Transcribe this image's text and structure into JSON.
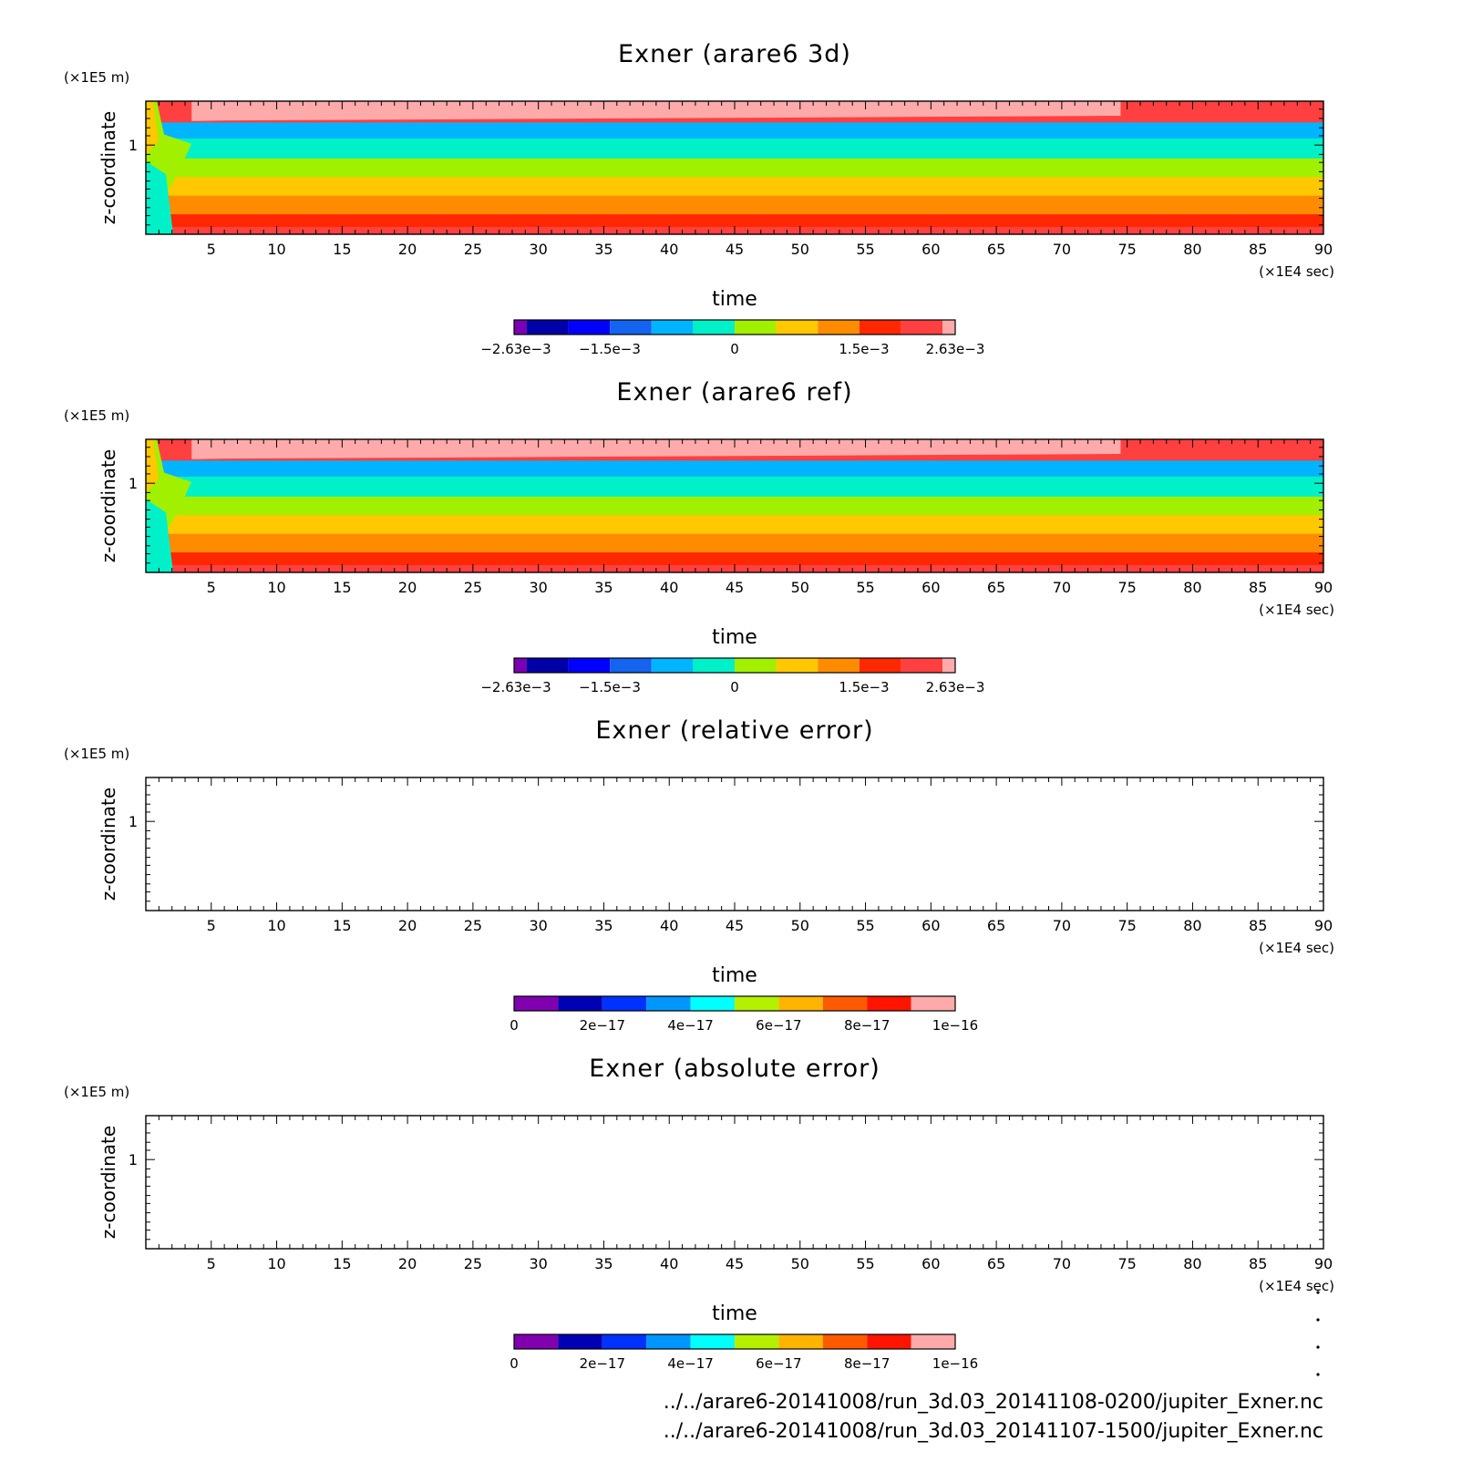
{
  "chart_data": [
    {
      "type": "heatmap",
      "title": "Exner (arare6 3d)",
      "xlabel": "time",
      "ylabel": "z-coordinate",
      "x_unit": "(×1E4 sec)",
      "y_unit": "(×1E5 m)",
      "xlim": [
        0,
        90
      ],
      "x_ticks": [
        "5",
        "10",
        "15",
        "20",
        "25",
        "30",
        "35",
        "40",
        "45",
        "50",
        "55",
        "60",
        "65",
        "70",
        "75",
        "80",
        "85",
        "90"
      ],
      "y_ticks": [
        "1"
      ],
      "colorbar": {
        "colors": [
          "#7a00b4",
          "#0000a8",
          "#0000ff",
          "#1464f0",
          "#00b4ff",
          "#00f0c8",
          "#a0f000",
          "#ffc800",
          "#ff8c00",
          "#ff2800",
          "#ff4040",
          "#ffaaaa"
        ],
        "labels": [
          "−2.63e−3",
          "−1.5e−3",
          "0",
          "1.5e−3",
          "2.63e−3"
        ]
      },
      "bands": [
        {
          "value": -0.001,
          "color": "#00b4ff"
        },
        {
          "value": -0.0005,
          "color": "#00f0c8"
        },
        {
          "value": 0.0003,
          "color": "#a0f000"
        },
        {
          "value": 0.0008,
          "color": "#ffc800"
        },
        {
          "value": 0.0013,
          "color": "#ff8c00"
        },
        {
          "value": 0.0018,
          "color": "#ff2800"
        },
        {
          "value": 0.0023,
          "color": "#ff4040"
        },
        {
          "value": 0.0026,
          "color": "#ffaaaa"
        }
      ]
    },
    {
      "type": "heatmap",
      "title": "Exner (arare6 ref)",
      "xlabel": "time",
      "ylabel": "z-coordinate",
      "x_unit": "(×1E4 sec)",
      "y_unit": "(×1E5 m)",
      "xlim": [
        0,
        90
      ],
      "x_ticks": [
        "5",
        "10",
        "15",
        "20",
        "25",
        "30",
        "35",
        "40",
        "45",
        "50",
        "55",
        "60",
        "65",
        "70",
        "75",
        "80",
        "85",
        "90"
      ],
      "y_ticks": [
        "1"
      ],
      "colorbar": {
        "colors": [
          "#7a00b4",
          "#0000a8",
          "#0000ff",
          "#1464f0",
          "#00b4ff",
          "#00f0c8",
          "#a0f000",
          "#ffc800",
          "#ff8c00",
          "#ff2800",
          "#ff4040",
          "#ffaaaa"
        ],
        "labels": [
          "−2.63e−3",
          "−1.5e−3",
          "0",
          "1.5e−3",
          "2.63e−3"
        ]
      },
      "bands": [
        {
          "value": -0.001,
          "color": "#00b4ff"
        },
        {
          "value": -0.0005,
          "color": "#00f0c8"
        },
        {
          "value": 0.0003,
          "color": "#a0f000"
        },
        {
          "value": 0.0008,
          "color": "#ffc800"
        },
        {
          "value": 0.0013,
          "color": "#ff8c00"
        },
        {
          "value": 0.0018,
          "color": "#ff2800"
        },
        {
          "value": 0.0023,
          "color": "#ff4040"
        },
        {
          "value": 0.0026,
          "color": "#ffaaaa"
        }
      ]
    },
    {
      "type": "heatmap",
      "title": "Exner (relative error)",
      "xlabel": "time",
      "ylabel": "z-coordinate",
      "x_unit": "(×1E4 sec)",
      "y_unit": "(×1E5 m)",
      "xlim": [
        0,
        90
      ],
      "x_ticks": [
        "5",
        "10",
        "15",
        "20",
        "25",
        "30",
        "35",
        "40",
        "45",
        "50",
        "55",
        "60",
        "65",
        "70",
        "75",
        "80",
        "85",
        "90"
      ],
      "y_ticks": [
        "1"
      ],
      "colorbar": {
        "colors": [
          "#8000b0",
          "#0000b4",
          "#0032ff",
          "#0096ff",
          "#00ffff",
          "#b4f000",
          "#ffb400",
          "#ff5a00",
          "#ff1400",
          "#ffaaaa"
        ],
        "labels": [
          "0",
          "2e−17",
          "4e−17",
          "6e−17",
          "8e−17",
          "1e−16"
        ]
      },
      "bands": []
    },
    {
      "type": "heatmap",
      "title": "Exner (absolute error)",
      "xlabel": "time",
      "ylabel": "z-coordinate",
      "x_unit": "(×1E4 sec)",
      "y_unit": "(×1E5 m)",
      "xlim": [
        0,
        90
      ],
      "x_ticks": [
        "5",
        "10",
        "15",
        "20",
        "25",
        "30",
        "35",
        "40",
        "45",
        "50",
        "55",
        "60",
        "65",
        "70",
        "75",
        "80",
        "85",
        "90"
      ],
      "y_ticks": [
        "1"
      ],
      "colorbar": {
        "colors": [
          "#8000b0",
          "#0000b4",
          "#0032ff",
          "#0096ff",
          "#00ffff",
          "#b4f000",
          "#ffb400",
          "#ff5a00",
          "#ff1400",
          "#ffaaaa"
        ],
        "labels": [
          "0",
          "2e−17",
          "4e−17",
          "6e−17",
          "8e−17",
          "1e−16"
        ]
      },
      "bands": []
    }
  ],
  "footer": {
    "line1": "../../arare6-20141008/run_3d.03_20141108-0200/jupiter_Exner.nc",
    "line2": "../../arare6-20141008/run_3d.03_20141107-1500/jupiter_Exner.nc"
  }
}
